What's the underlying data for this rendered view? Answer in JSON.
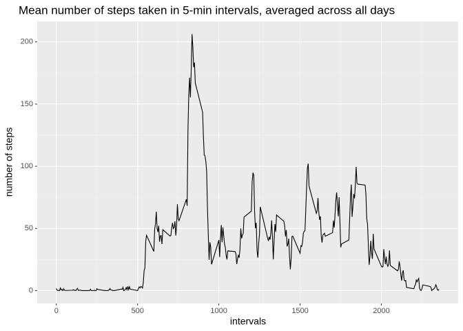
{
  "chart_data": {
    "type": "line",
    "title": "Mean number of steps taken in 5-min intervals, averaged across all days",
    "x_label": "intervals",
    "y_label": "number of steps",
    "xlim": [
      -117.75,
      2472.75
    ],
    "xticks": [
      0,
      500,
      1000,
      1500,
      2000
    ],
    "ylim": [
      -10.3,
      216.5
    ],
    "yticks": [
      0,
      50,
      100,
      150,
      200
    ],
    "grid": true,
    "series": [
      {
        "color": "#000000",
        "x": [
          0,
          5,
          10,
          15,
          20,
          25,
          30,
          35,
          40,
          45,
          50,
          55,
          100,
          105,
          110,
          115,
          120,
          125,
          130,
          135,
          140,
          145,
          150,
          155,
          200,
          205,
          210,
          215,
          220,
          225,
          230,
          235,
          240,
          245,
          250,
          255,
          300,
          305,
          310,
          315,
          320,
          325,
          330,
          335,
          340,
          345,
          350,
          355,
          400,
          405,
          410,
          415,
          420,
          425,
          430,
          435,
          440,
          445,
          450,
          455,
          500,
          505,
          510,
          515,
          520,
          525,
          530,
          535,
          540,
          545,
          550,
          555,
          600,
          605,
          610,
          615,
          620,
          625,
          630,
          635,
          640,
          645,
          650,
          655,
          700,
          705,
          710,
          715,
          720,
          725,
          730,
          735,
          740,
          745,
          750,
          755,
          800,
          805,
          810,
          815,
          820,
          825,
          830,
          835,
          840,
          845,
          850,
          855,
          900,
          905,
          910,
          915,
          920,
          925,
          930,
          935,
          940,
          945,
          950,
          955,
          1000,
          1005,
          1010,
          1015,
          1020,
          1025,
          1030,
          1035,
          1040,
          1045,
          1050,
          1055,
          1100,
          1105,
          1110,
          1115,
          1120,
          1125,
          1130,
          1135,
          1140,
          1145,
          1150,
          1155,
          1200,
          1205,
          1210,
          1215,
          1220,
          1225,
          1230,
          1235,
          1240,
          1245,
          1250,
          1255,
          1300,
          1305,
          1310,
          1315,
          1320,
          1325,
          1330,
          1335,
          1340,
          1345,
          1350,
          1355,
          1400,
          1405,
          1410,
          1415,
          1420,
          1425,
          1430,
          1435,
          1440,
          1445,
          1450,
          1455,
          1500,
          1505,
          1510,
          1515,
          1520,
          1525,
          1530,
          1535,
          1540,
          1545,
          1550,
          1555,
          1600,
          1605,
          1610,
          1615,
          1620,
          1625,
          1630,
          1635,
          1640,
          1645,
          1650,
          1655,
          1700,
          1705,
          1710,
          1715,
          1720,
          1725,
          1730,
          1735,
          1740,
          1745,
          1750,
          1755,
          1800,
          1805,
          1810,
          1815,
          1820,
          1825,
          1830,
          1835,
          1840,
          1845,
          1850,
          1855,
          1900,
          1905,
          1910,
          1915,
          1920,
          1925,
          1930,
          1935,
          1940,
          1945,
          1950,
          1955,
          2000,
          2005,
          2010,
          2015,
          2020,
          2025,
          2030,
          2035,
          2040,
          2045,
          2050,
          2055,
          2100,
          2105,
          2110,
          2115,
          2120,
          2125,
          2130,
          2135,
          2140,
          2145,
          2150,
          2155,
          2200,
          2205,
          2210,
          2215,
          2220,
          2225,
          2230,
          2235,
          2240,
          2245,
          2250,
          2255,
          2300,
          2305,
          2310,
          2315,
          2320,
          2325,
          2330,
          2335,
          2340,
          2345,
          2350,
          2355
        ],
        "values": [
          1.7,
          0.3,
          0.1,
          0.2,
          0.1,
          2.1,
          0.5,
          0.9,
          0,
          1.5,
          0.3,
          0.1,
          0.3,
          0.7,
          0.2,
          0.3,
          0,
          1.1,
          1.8,
          0.2,
          0.2,
          0.4,
          0.3,
          0,
          0,
          0,
          1.1,
          0,
          0,
          0.1,
          0,
          0.2,
          0,
          0,
          1.5,
          0.9,
          0,
          0,
          0,
          0,
          0.2,
          0.6,
          1.6,
          0.6,
          0.5,
          0.1,
          0,
          0,
          1.2,
          0.9,
          2.6,
          0,
          0.3,
          0.9,
          2.5,
          0.7,
          3.5,
          0.8,
          3.1,
          1.1,
          0,
          1.6,
          3.0,
          2.2,
          3.3,
          3.0,
          2.1,
          6.1,
          16.0,
          18.3,
          39.5,
          44.5,
          31.5,
          49.3,
          53.8,
          63.5,
          50.0,
          47.1,
          52.2,
          39.3,
          44.0,
          44.2,
          37.4,
          49.0,
          43.8,
          44.4,
          50.5,
          54.5,
          49.9,
          50.9,
          55.7,
          44.3,
          52.3,
          69.5,
          57.8,
          56.2,
          73.4,
          68.2,
          129.4,
          157.5,
          171.2,
          155.4,
          177.3,
          206.2,
          195.9,
          179.6,
          183.4,
          167.0,
          143.5,
          124.0,
          109.1,
          108.1,
          103.7,
          96.0,
          66.2,
          45.2,
          24.8,
          38.8,
          35.0,
          21.1,
          40.6,
          27.0,
          42.4,
          52.7,
          38.9,
          50.8,
          44.3,
          37.4,
          34.7,
          28.3,
          25.1,
          31.9,
          31.4,
          29.7,
          21.3,
          25.5,
          28.4,
          26.5,
          33.4,
          50.0,
          42.0,
          44.6,
          46.0,
          59.2,
          63.9,
          87.7,
          94.8,
          92.8,
          63.4,
          50.2,
          54.5,
          32.4,
          26.5,
          37.7,
          45.1,
          67.3,
          42.3,
          39.9,
          43.3,
          41.0,
          46.2,
          56.4,
          42.8,
          25.1,
          40.0,
          53.5,
          47.3,
          60.8,
          55.8,
          52.0,
          43.6,
          48.7,
          35.5,
          37.5,
          41.8,
          27.5,
          17.1,
          26.1,
          43.6,
          43.8,
          30.0,
          36.1,
          35.5,
          38.8,
          46.0,
          47.8,
          48.1,
          65.3,
          82.9,
          98.7,
          102.1,
          84.0,
          62.1,
          64.1,
          74.5,
          63.2,
          56.9,
          59.8,
          43.9,
          38.6,
          44.7,
          45.5,
          46.2,
          43.7,
          46.6,
          56.3,
          50.7,
          61.2,
          72.7,
          78.9,
          68.9,
          59.7,
          75.1,
          56.5,
          34.8,
          37.5,
          40.7,
          58.0,
          74.7,
          85.3,
          59.3,
          67.8,
          77.7,
          74.2,
          85.3,
          99.5,
          86.6,
          85.6,
          84.9,
          77.8,
          58.0,
          53.4,
          36.3,
          20.7,
          27.4,
          40.0,
          30.2,
          25.5,
          45.7,
          33.5,
          19.6,
          19.0,
          19.3,
          33.3,
          26.8,
          21.2,
          27.3,
          21.3,
          19.5,
          21.3,
          32.3,
          20.2,
          15.9,
          17.2,
          23.5,
          19.2,
          12.5,
          8.0,
          14.7,
          16.3,
          8.7,
          7.8,
          8.1,
          2.6,
          1.5,
          3.7,
          4.8,
          8.5,
          7.1,
          8.7,
          9.8,
          2.2,
          0.3,
          0.1,
          1.6,
          4.6,
          3.3,
          2.8,
          0,
          0.8,
          1.0,
          1.6,
          2.6,
          4.7,
          3.3,
          0.6,
          0.2,
          1.1
        ]
      }
    ]
  }
}
